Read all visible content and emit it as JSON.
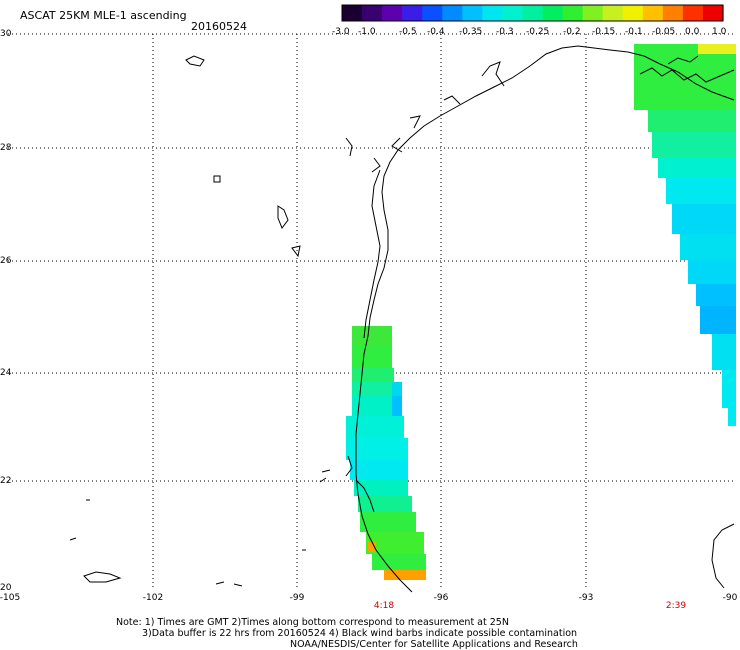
{
  "header": {
    "title": "ASCAT 25KM MLE-1 ascending",
    "date": "20160524"
  },
  "colorbar": {
    "colors": [
      "#1a0030",
      "#3a0070",
      "#5c00b0",
      "#3a1ee8",
      "#0a50ff",
      "#008cff",
      "#00c0ff",
      "#00e6f0",
      "#00f0d0",
      "#00f0a0",
      "#00ee60",
      "#30ee30",
      "#80f020",
      "#c8f020",
      "#f0f000",
      "#ffc000",
      "#ff8000",
      "#ff3000",
      "#ee0000"
    ],
    "labels": [
      "-3.0",
      "-1.0",
      "-0.5",
      "-0.4",
      "-0.35",
      "-0.3",
      "-0.25",
      "-0.2",
      "-0.15",
      "-0.1",
      "-0.05",
      "0.0",
      "1.0"
    ]
  },
  "axes": {
    "lat_labels": [
      "30",
      "28",
      "26",
      "24",
      "22",
      "20"
    ],
    "lon_labels": [
      "-105",
      "-102",
      "-99",
      "-96",
      "-93",
      "-90"
    ],
    "lat_range": [
      20,
      30
    ],
    "lon_range": [
      -105,
      -90
    ],
    "grid": "dotted"
  },
  "swath_times": [
    {
      "label": "4:18"
    },
    {
      "label": "2:39"
    }
  ],
  "notes": {
    "line1": "Note: 1) Times are GMT 2)Times along bottom correspond to measurement at 25N",
    "line2": "3)Data buffer is 22 hrs from 20160524 4) Black wind barbs indicate possible contamination",
    "line3": "NOAA/NESDIS/Center for Satellite Applications and Research"
  }
}
